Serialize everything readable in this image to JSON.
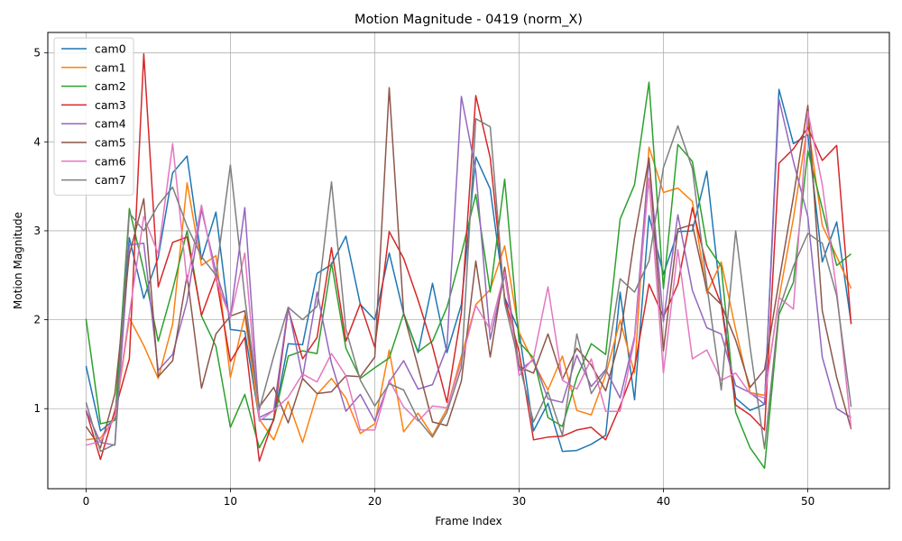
{
  "chart_data": {
    "type": "line",
    "title": "Motion Magnitude - 0419 (norm_X)",
    "xlabel": "Frame Index",
    "ylabel": "Motion Magnitude",
    "xlim": [
      -2.65,
      55.65
    ],
    "ylim": [
      0.1,
      5.23
    ],
    "xticks": [
      0,
      10,
      20,
      30,
      40,
      50
    ],
    "yticks": [
      1,
      2,
      3,
      4,
      5
    ],
    "grid": true,
    "legend_position": "top-left",
    "series": [
      {
        "name": "cam0",
        "color": "#1f77b4",
        "values": [
          1.48,
          0.75,
          0.88,
          2.92,
          2.24,
          2.7,
          3.65,
          3.84,
          2.68,
          3.21,
          1.89,
          1.87,
          0.88,
          0.88,
          1.73,
          1.72,
          2.52,
          2.62,
          2.94,
          2.17,
          2.0,
          2.75,
          2.07,
          1.63,
          2.41,
          1.63,
          2.17,
          3.83,
          3.47,
          2.25,
          1.87,
          0.75,
          1.06,
          0.52,
          0.53,
          0.6,
          0.7,
          2.31,
          1.1,
          3.17,
          2.51,
          2.99,
          3.0,
          3.67,
          2.2,
          1.12,
          0.98,
          1.05,
          4.59,
          3.98,
          4.08,
          2.65,
          3.1,
          1.96
        ]
      },
      {
        "name": "cam1",
        "color": "#ff7f0e",
        "values": [
          0.65,
          0.67,
          0.89,
          2.02,
          1.71,
          1.34,
          1.95,
          3.54,
          2.61,
          2.72,
          1.35,
          2.05,
          0.88,
          0.65,
          1.08,
          0.62,
          1.16,
          1.34,
          1.12,
          0.72,
          0.83,
          1.66,
          0.74,
          0.95,
          0.7,
          1.0,
          1.59,
          2.17,
          2.34,
          2.83,
          1.86,
          1.52,
          1.21,
          1.59,
          0.98,
          0.93,
          1.38,
          1.99,
          1.4,
          3.94,
          3.43,
          3.48,
          3.33,
          2.3,
          2.65,
          1.89,
          1.18,
          1.15,
          2.24,
          3.14,
          4.21,
          3.06,
          2.71,
          2.35
        ]
      },
      {
        "name": "cam2",
        "color": "#2ca02c",
        "values": [
          2.01,
          0.83,
          0.87,
          3.25,
          2.55,
          1.76,
          2.34,
          3.0,
          2.04,
          1.7,
          0.79,
          1.16,
          0.56,
          0.87,
          1.59,
          1.65,
          1.62,
          2.64,
          1.68,
          1.34,
          1.46,
          1.57,
          2.07,
          1.64,
          1.76,
          2.14,
          2.74,
          3.41,
          2.31,
          3.58,
          1.75,
          1.57,
          0.9,
          0.8,
          1.35,
          1.73,
          1.61,
          3.13,
          3.52,
          4.67,
          2.35,
          3.97,
          3.78,
          2.84,
          2.6,
          0.96,
          0.56,
          0.33,
          2.06,
          2.42,
          3.9,
          3.25,
          2.61,
          2.74
        ]
      },
      {
        "name": "cam3",
        "color": "#d62728",
        "values": [
          0.98,
          0.43,
          0.98,
          1.56,
          4.99,
          2.37,
          2.87,
          2.93,
          2.05,
          2.49,
          1.53,
          1.8,
          0.41,
          0.89,
          2.12,
          1.56,
          1.8,
          2.81,
          1.76,
          2.18,
          1.69,
          2.99,
          2.69,
          2.22,
          1.7,
          1.07,
          2.08,
          4.52,
          3.82,
          2.24,
          1.64,
          0.65,
          0.68,
          0.69,
          0.76,
          0.79,
          0.65,
          1.03,
          1.46,
          2.4,
          2.03,
          2.4,
          3.26,
          2.6,
          2.17,
          1.04,
          0.93,
          0.76,
          3.76,
          3.92,
          4.16,
          3.79,
          3.96,
          1.95
        ]
      },
      {
        "name": "cam4",
        "color": "#9467bd",
        "values": [
          0.98,
          0.62,
          0.59,
          2.84,
          2.86,
          1.43,
          1.61,
          2.21,
          3.24,
          2.54,
          2.03,
          3.26,
          0.9,
          0.98,
          2.14,
          1.35,
          2.31,
          1.51,
          0.97,
          1.16,
          0.86,
          1.3,
          1.54,
          1.22,
          1.27,
          1.69,
          4.51,
          3.67,
          1.78,
          2.51,
          1.43,
          1.55,
          1.11,
          1.07,
          1.6,
          1.25,
          1.44,
          1.12,
          1.81,
          3.81,
          1.98,
          3.18,
          2.33,
          1.91,
          1.84,
          1.26,
          1.18,
          1.05,
          4.48,
          3.78,
          3.16,
          1.58,
          1.0,
          0.9
        ]
      },
      {
        "name": "cam5",
        "color": "#8c564b",
        "values": [
          0.8,
          0.56,
          1.17,
          2.73,
          3.36,
          1.36,
          1.54,
          2.5,
          1.23,
          1.84,
          2.04,
          2.1,
          1.02,
          1.24,
          0.84,
          1.34,
          1.17,
          1.19,
          1.37,
          1.36,
          1.58,
          4.61,
          2.07,
          1.47,
          0.85,
          0.81,
          1.31,
          2.66,
          1.58,
          2.59,
          1.47,
          1.4,
          1.84,
          1.33,
          1.68,
          1.49,
          1.2,
          1.8,
          2.92,
          3.82,
          1.65,
          3.02,
          3.07,
          2.33,
          2.17,
          1.77,
          1.24,
          1.44,
          2.43,
          3.38,
          4.41,
          2.1,
          1.35,
          0.77
        ]
      },
      {
        "name": "cam6",
        "color": "#e377c2",
        "values": [
          0.59,
          0.63,
          0.91,
          2.06,
          3.16,
          2.74,
          3.98,
          2.42,
          3.29,
          2.45,
          2.02,
          2.75,
          0.86,
          0.98,
          1.13,
          1.39,
          1.3,
          1.62,
          1.37,
          0.76,
          0.76,
          1.32,
          1.02,
          0.86,
          1.03,
          1.01,
          1.53,
          2.16,
          1.89,
          2.54,
          1.37,
          1.57,
          2.37,
          1.32,
          1.22,
          1.56,
          0.97,
          0.97,
          1.78,
          3.59,
          1.4,
          2.79,
          1.56,
          1.66,
          1.32,
          1.4,
          1.17,
          1.12,
          2.25,
          2.12,
          4.34,
          3.52,
          2.32,
          0.78
        ]
      },
      {
        "name": "cam7",
        "color": "#7f7f7f",
        "values": [
          1.07,
          0.52,
          0.6,
          3.2,
          3.0,
          3.29,
          3.49,
          3.05,
          2.71,
          2.5,
          3.74,
          2.25,
          0.99,
          1.59,
          2.14,
          2.0,
          2.15,
          3.55,
          1.89,
          1.32,
          1.03,
          1.28,
          1.21,
          0.88,
          0.68,
          0.96,
          1.46,
          4.26,
          4.17,
          2.19,
          1.51,
          0.85,
          1.19,
          0.7,
          1.84,
          1.17,
          1.42,
          2.46,
          2.31,
          2.66,
          3.71,
          4.18,
          3.7,
          2.39,
          1.21,
          3.0,
          1.69,
          0.55,
          2.11,
          2.6,
          2.97,
          2.86,
          2.27,
          1.02
        ]
      }
    ]
  }
}
